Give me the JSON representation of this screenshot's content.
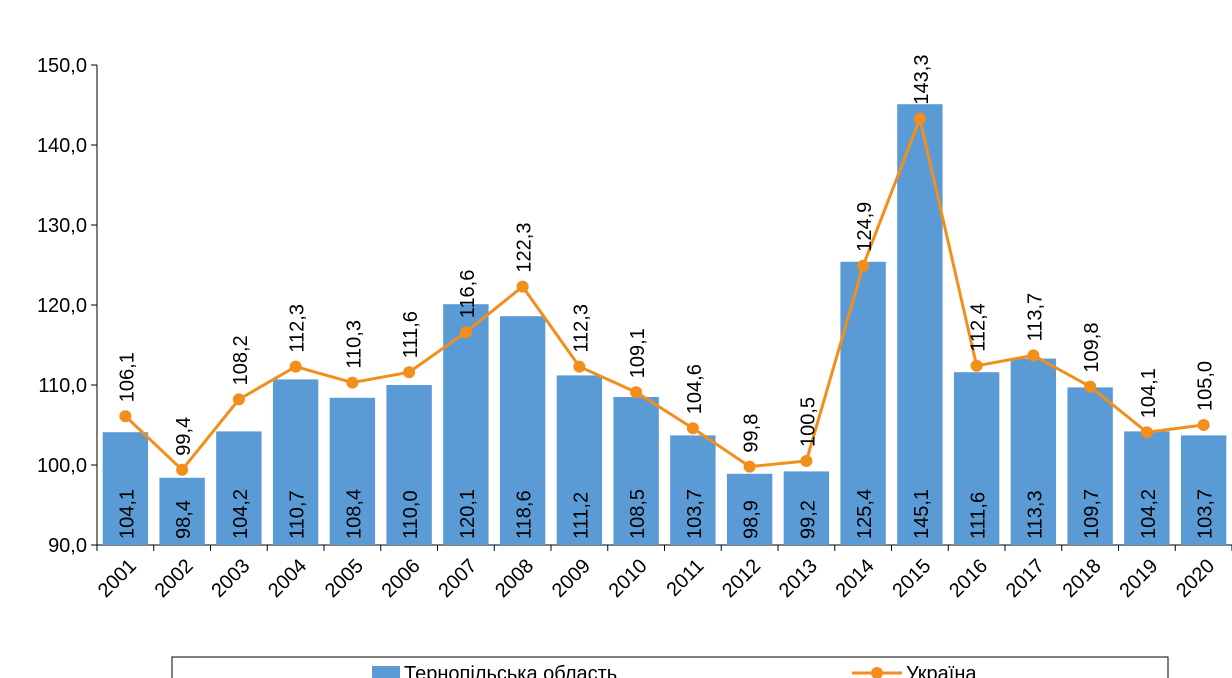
{
  "chart_data": {
    "type": "bar-line",
    "categories": [
      "2001",
      "2002",
      "2003",
      "2004",
      "2005",
      "2006",
      "2007",
      "2008",
      "2009",
      "2010",
      "2011",
      "2012",
      "2013",
      "2014",
      "2015",
      "2016",
      "2017",
      "2018",
      "2019",
      "2020"
    ],
    "series": [
      {
        "name": "Тернопільська  область",
        "type": "bar",
        "color": "#5b9bd5",
        "values": [
          104.1,
          98.4,
          104.2,
          110.7,
          108.4,
          110.0,
          120.1,
          118.6,
          111.2,
          108.5,
          103.7,
          98.9,
          99.2,
          125.4,
          145.1,
          111.6,
          113.3,
          109.7,
          104.2,
          103.7
        ],
        "value_labels": [
          "104,1",
          "98,4",
          "104,2",
          "110,7",
          "108,4",
          "110,0",
          "120,1",
          "118,6",
          "111,2",
          "108,5",
          "103,7",
          "98,9",
          "99,2",
          "125,4",
          "145,1",
          "111,6",
          "113,3",
          "109,7",
          "104,2",
          "103,7"
        ]
      },
      {
        "name": "Україна",
        "type": "line",
        "color": "#f28e1c",
        "values": [
          106.1,
          99.4,
          108.2,
          112.3,
          110.3,
          111.6,
          116.6,
          122.3,
          112.3,
          109.1,
          104.6,
          99.8,
          100.5,
          124.9,
          143.3,
          112.4,
          113.7,
          109.8,
          104.1,
          105.0
        ],
        "value_labels": [
          "106,1",
          "99,4",
          "108,2",
          "112,3",
          "110,3",
          "111,6",
          "116,6",
          "122,3",
          "112,3",
          "109,1",
          "104,6",
          "99,8",
          "100,5",
          "124,9",
          "143,3",
          "112,4",
          "113,7",
          "109,8",
          "104,1",
          "105,0"
        ]
      }
    ],
    "ylim": [
      90,
      150
    ],
    "yticks": [
      {
        "value": 90,
        "label": "90,0"
      },
      {
        "value": 100,
        "label": "100,0"
      },
      {
        "value": 110,
        "label": "110,0"
      },
      {
        "value": 120,
        "label": "120,0"
      },
      {
        "value": 130,
        "label": "130,0"
      },
      {
        "value": 140,
        "label": "140,0"
      },
      {
        "value": 150,
        "label": "150,0"
      }
    ],
    "legend": "bottom"
  }
}
